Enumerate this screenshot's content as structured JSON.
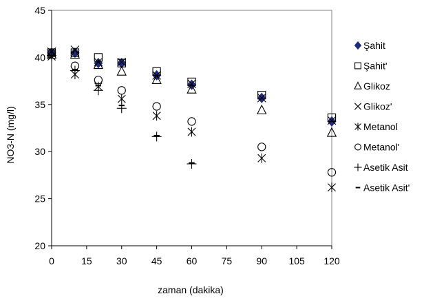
{
  "chart_data": {
    "type": "scatter",
    "xlabel": "zaman (dakika)",
    "ylabel": "NO3-N (mg/l)",
    "xlim": [
      0,
      120
    ],
    "ylim": [
      20,
      45
    ],
    "xticks": [
      "0",
      "15",
      "30",
      "45",
      "60",
      "75",
      "90",
      "105",
      "120"
    ],
    "yticks": [
      "20",
      "25",
      "30",
      "35",
      "40",
      "45"
    ],
    "grid": false,
    "legend_position": "right",
    "x": [
      0,
      10,
      20,
      30,
      45,
      60,
      90,
      120
    ],
    "series": [
      {
        "name": "Şahit",
        "marker": "filled-diamond",
        "color": "#1f2a7a",
        "values": [
          40.5,
          40.5,
          39.4,
          39.4,
          38.1,
          37.1,
          35.7,
          33.2
        ]
      },
      {
        "name": "Şahit'",
        "marker": "square",
        "color": "#000000",
        "values": [
          40.5,
          40.5,
          40.0,
          39.4,
          38.5,
          37.4,
          36.0,
          33.6
        ]
      },
      {
        "name": "Glikoz",
        "marker": "triangle",
        "color": "#000000",
        "values": [
          40.3,
          40.3,
          39.2,
          38.5,
          37.6,
          36.6,
          34.4,
          32.0
        ]
      },
      {
        "name": "Glikoz'",
        "marker": "x",
        "color": "#000000",
        "values": [
          40.6,
          40.8,
          39.5,
          39.5,
          38.1,
          37.2,
          35.7,
          33.3
        ]
      },
      {
        "name": "Metanol",
        "marker": "asterisk",
        "color": "#000000",
        "values": [
          40.1,
          38.2,
          36.9,
          35.6,
          33.8,
          32.1,
          29.3,
          26.2
        ]
      },
      {
        "name": "Metanol'",
        "marker": "circle",
        "color": "#000000",
        "values": [
          40.5,
          39.1,
          37.6,
          36.5,
          34.8,
          33.2,
          30.5,
          27.8
        ]
      },
      {
        "name": "Asetik Asit",
        "marker": "plus",
        "color": "#000000",
        "values": [
          40.2,
          38.6,
          36.5,
          34.6,
          31.6,
          28.7,
          null,
          null
        ]
      },
      {
        "name": "Asetik Asit'",
        "marker": "dash",
        "color": "#000000",
        "values": [
          40.2,
          38.7,
          37.0,
          34.9,
          31.7,
          28.8,
          null,
          null
        ]
      }
    ]
  }
}
